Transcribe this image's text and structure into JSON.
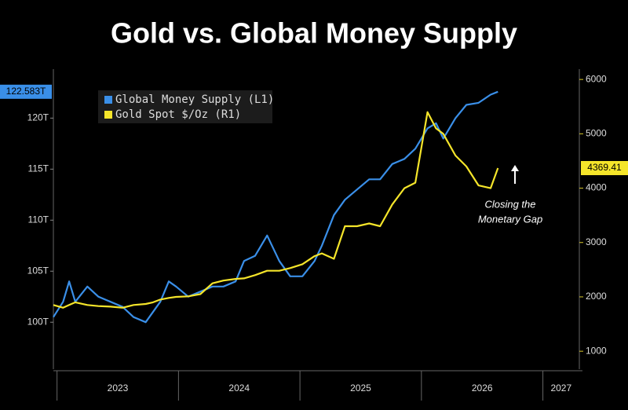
{
  "chart_data": {
    "type": "line",
    "title": "Gold vs. Global Money Supply",
    "x": [
      2022.97,
      2023.05,
      2023.1,
      2023.15,
      2023.25,
      2023.34,
      2023.44,
      2023.54,
      2023.63,
      2023.73,
      2023.79,
      2023.85,
      2023.92,
      2023.98,
      2024.08,
      2024.18,
      2024.28,
      2024.37,
      2024.47,
      2024.54,
      2024.63,
      2024.73,
      2024.83,
      2024.92,
      2025.02,
      2025.12,
      2025.18,
      2025.28,
      2025.37,
      2025.47,
      2025.57,
      2025.66,
      2025.76,
      2025.86,
      2025.95,
      2026.05,
      2026.12,
      2026.18,
      2026.28,
      2026.37,
      2026.47,
      2026.57,
      2026.63
    ],
    "series": [
      {
        "name": "Global Money Supply (L1)",
        "color": "#3a8fe8",
        "axis": "y",
        "values": [
          100.5,
          102,
          104,
          102,
          103.5,
          102.5,
          102,
          101.5,
          100.5,
          100,
          101,
          102,
          104,
          103.5,
          102.5,
          103,
          103.5,
          103.5,
          104,
          106,
          106.5,
          108.5,
          106,
          104.5,
          104.5,
          106,
          107.5,
          110.5,
          112,
          113,
          114,
          114,
          115.5,
          116,
          117,
          119,
          119.5,
          118,
          120,
          121.3,
          121.5,
          122.3,
          122.583
        ],
        "last_label": "122.583T"
      },
      {
        "name": "Gold Spot $/Oz (R1)",
        "color": "#f5e52a",
        "axis": "y2",
        "values": [
          1850,
          1800,
          1850,
          1900,
          1850,
          1830,
          1820,
          1800,
          1850,
          1870,
          1900,
          1950,
          1980,
          2000,
          2010,
          2050,
          2250,
          2300,
          2330,
          2340,
          2400,
          2480,
          2480,
          2530,
          2600,
          2750,
          2800,
          2700,
          3300,
          3300,
          3350,
          3300,
          3700,
          4000,
          4100,
          5400,
          5100,
          5000,
          4600,
          4400,
          4050,
          4000,
          4369.41
        ],
        "last_label": "4369.41"
      }
    ],
    "xlim": [
      2022.97,
      2027.3
    ],
    "xticks": [
      2023,
      2024,
      2025,
      2026,
      2027
    ],
    "ylim": [
      95.4,
      124.8
    ],
    "yticks": [
      {
        "value": 100,
        "label": "100T"
      },
      {
        "value": 105,
        "label": "105T"
      },
      {
        "value": 110,
        "label": "110T"
      },
      {
        "value": 115,
        "label": "115T"
      },
      {
        "value": 120,
        "label": "120T"
      }
    ],
    "y2lim": [
      670,
      6190
    ],
    "y2ticks": [
      1000,
      2000,
      3000,
      4000,
      5000,
      6000
    ],
    "legend": "upper left",
    "annotation": [
      "Closing the",
      "Monetary Gap"
    ]
  }
}
